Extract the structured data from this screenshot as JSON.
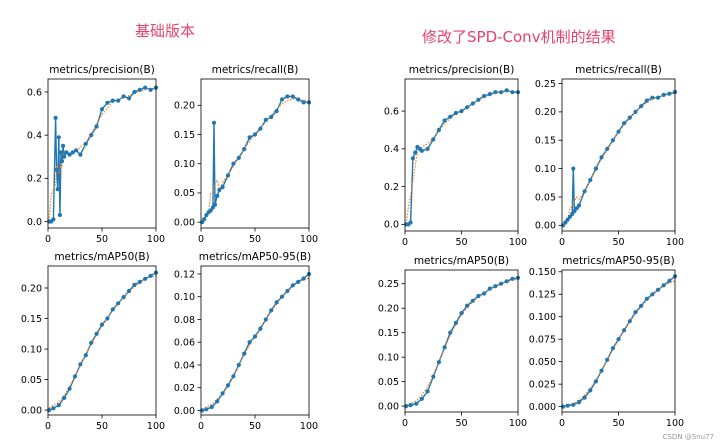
{
  "headings": {
    "left": "基础版本",
    "right": "修改了SPD-Conv机制的结果"
  },
  "watermark": "CSDN @Snu77",
  "series_color": "#1f77b4",
  "smooth_color": "#ff7f0e",
  "chart_data": [
    {
      "type": "line",
      "group": "left",
      "title": "metrics/precision(B)",
      "xlim": [
        0,
        100
      ],
      "ylim": [
        -0.03,
        0.66
      ],
      "xticks": [
        0,
        50,
        100
      ],
      "yticks": [
        0.0,
        0.2,
        0.4,
        0.6
      ],
      "ytick_labels": [
        "0.0",
        "0.2",
        "0.4",
        "0.6"
      ],
      "series": [
        {
          "x": [
            1,
            3,
            5,
            7,
            8,
            9,
            10,
            11,
            12,
            13,
            14,
            15,
            17,
            20,
            23,
            26,
            30,
            35,
            40,
            45,
            50,
            55,
            60,
            65,
            70,
            75,
            80,
            85,
            90,
            95,
            100
          ],
          "y": [
            0.0,
            0.0,
            0.01,
            0.48,
            0.24,
            0.15,
            0.39,
            0.03,
            0.32,
            0.28,
            0.35,
            0.3,
            0.32,
            0.31,
            0.32,
            0.33,
            0.31,
            0.36,
            0.4,
            0.44,
            0.52,
            0.55,
            0.56,
            0.56,
            0.58,
            0.57,
            0.6,
            0.61,
            0.62,
            0.61,
            0.62
          ]
        }
      ]
    },
    {
      "type": "line",
      "group": "left",
      "title": "metrics/recall(B)",
      "xlim": [
        0,
        100
      ],
      "ylim": [
        -0.01,
        0.245
      ],
      "xticks": [
        0,
        50,
        100
      ],
      "yticks": [
        0.0,
        0.05,
        0.1,
        0.15,
        0.2
      ],
      "ytick_labels": [
        "0.00",
        "0.05",
        "0.10",
        "0.15",
        "0.20"
      ],
      "series": [
        {
          "x": [
            1,
            3,
            5,
            7,
            9,
            11,
            12,
            13,
            15,
            17,
            20,
            25,
            30,
            35,
            40,
            45,
            50,
            55,
            60,
            65,
            70,
            75,
            80,
            85,
            90,
            95,
            100
          ],
          "y": [
            0.0,
            0.005,
            0.012,
            0.017,
            0.02,
            0.025,
            0.17,
            0.03,
            0.045,
            0.055,
            0.06,
            0.08,
            0.1,
            0.11,
            0.125,
            0.145,
            0.15,
            0.16,
            0.175,
            0.18,
            0.19,
            0.21,
            0.215,
            0.215,
            0.21,
            0.205,
            0.205
          ]
        }
      ]
    },
    {
      "type": "line",
      "group": "left",
      "title": "metrics/mAP50(B)",
      "xlim": [
        0,
        100
      ],
      "ylim": [
        -0.008,
        0.236
      ],
      "xticks": [
        0,
        50,
        100
      ],
      "yticks": [
        0.0,
        0.05,
        0.1,
        0.15,
        0.2
      ],
      "ytick_labels": [
        "0.00",
        "0.05",
        "0.10",
        "0.15",
        "0.20"
      ],
      "series": [
        {
          "x": [
            1,
            5,
            10,
            15,
            20,
            25,
            30,
            35,
            40,
            45,
            50,
            55,
            60,
            65,
            70,
            75,
            80,
            85,
            90,
            95,
            100
          ],
          "y": [
            0.0,
            0.003,
            0.008,
            0.02,
            0.035,
            0.055,
            0.075,
            0.09,
            0.11,
            0.125,
            0.14,
            0.15,
            0.165,
            0.175,
            0.185,
            0.195,
            0.205,
            0.21,
            0.215,
            0.22,
            0.225
          ]
        }
      ]
    },
    {
      "type": "line",
      "group": "left",
      "title": "metrics/mAP50-95(B)",
      "xlim": [
        0,
        100
      ],
      "ylim": [
        -0.004,
        0.127
      ],
      "xticks": [
        0,
        50,
        100
      ],
      "yticks": [
        0.0,
        0.02,
        0.04,
        0.06,
        0.08,
        0.1,
        0.12
      ],
      "ytick_labels": [
        "0.00",
        "0.02",
        "0.04",
        "0.06",
        "0.08",
        "0.10",
        "0.12"
      ],
      "series": [
        {
          "x": [
            1,
            5,
            10,
            15,
            20,
            25,
            30,
            35,
            40,
            45,
            50,
            55,
            60,
            65,
            70,
            75,
            80,
            85,
            90,
            95,
            100
          ],
          "y": [
            0.0,
            0.001,
            0.003,
            0.008,
            0.015,
            0.022,
            0.03,
            0.04,
            0.05,
            0.06,
            0.065,
            0.072,
            0.08,
            0.088,
            0.095,
            0.1,
            0.105,
            0.11,
            0.113,
            0.116,
            0.12
          ]
        }
      ]
    },
    {
      "type": "line",
      "group": "right",
      "title": "metrics/precision(B)",
      "xlim": [
        0,
        100
      ],
      "ylim": [
        -0.035,
        0.77
      ],
      "xticks": [
        0,
        50,
        100
      ],
      "yticks": [
        0.0,
        0.2,
        0.4,
        0.6
      ],
      "ytick_labels": [
        "0.0",
        "0.2",
        "0.4",
        "0.6"
      ],
      "series": [
        {
          "x": [
            1,
            3,
            5,
            7,
            9,
            11,
            13,
            15,
            20,
            25,
            30,
            35,
            40,
            45,
            50,
            55,
            60,
            65,
            70,
            75,
            80,
            85,
            90,
            95,
            100
          ],
          "y": [
            0.0,
            0.0,
            0.01,
            0.35,
            0.38,
            0.41,
            0.4,
            0.39,
            0.4,
            0.45,
            0.5,
            0.55,
            0.57,
            0.59,
            0.6,
            0.62,
            0.64,
            0.66,
            0.68,
            0.69,
            0.7,
            0.7,
            0.71,
            0.7,
            0.7
          ]
        }
      ]
    },
    {
      "type": "line",
      "group": "right",
      "title": "metrics/recall(B)",
      "xlim": [
        0,
        100
      ],
      "ylim": [
        -0.01,
        0.258
      ],
      "xticks": [
        0,
        50,
        100
      ],
      "yticks": [
        0.0,
        0.05,
        0.1,
        0.15,
        0.2,
        0.25
      ],
      "ytick_labels": [
        "0.00",
        "0.05",
        "0.10",
        "0.15",
        "0.20",
        "0.25"
      ],
      "series": [
        {
          "x": [
            1,
            3,
            5,
            7,
            9,
            10,
            11,
            13,
            15,
            20,
            25,
            30,
            35,
            40,
            45,
            50,
            55,
            60,
            65,
            70,
            75,
            80,
            85,
            90,
            95,
            100
          ],
          "y": [
            0.0,
            0.005,
            0.01,
            0.015,
            0.02,
            0.1,
            0.025,
            0.03,
            0.035,
            0.06,
            0.08,
            0.1,
            0.12,
            0.135,
            0.15,
            0.165,
            0.18,
            0.19,
            0.2,
            0.21,
            0.22,
            0.225,
            0.225,
            0.23,
            0.232,
            0.235
          ]
        }
      ]
    },
    {
      "type": "line",
      "group": "right",
      "title": "metrics/mAP50(B)",
      "xlim": [
        0,
        100
      ],
      "ylim": [
        -0.012,
        0.278
      ],
      "xticks": [
        0,
        50,
        100
      ],
      "yticks": [
        0.0,
        0.05,
        0.1,
        0.15,
        0.2,
        0.25
      ],
      "ytick_labels": [
        "0.00",
        "0.05",
        "0.10",
        "0.15",
        "0.20",
        "0.25"
      ],
      "series": [
        {
          "x": [
            1,
            5,
            10,
            15,
            20,
            25,
            30,
            35,
            40,
            45,
            50,
            55,
            60,
            65,
            70,
            75,
            80,
            85,
            90,
            95,
            100
          ],
          "y": [
            0.0,
            0.002,
            0.005,
            0.015,
            0.03,
            0.06,
            0.09,
            0.12,
            0.15,
            0.17,
            0.19,
            0.205,
            0.215,
            0.225,
            0.23,
            0.24,
            0.245,
            0.25,
            0.255,
            0.26,
            0.262
          ]
        }
      ]
    },
    {
      "type": "line",
      "group": "right",
      "title": "metrics/mAP50-95(B)",
      "xlim": [
        0,
        100
      ],
      "ylim": [
        -0.006,
        0.152
      ],
      "xticks": [
        0,
        50,
        100
      ],
      "yticks": [
        0.0,
        0.025,
        0.05,
        0.075,
        0.1,
        0.125,
        0.15
      ],
      "ytick_labels": [
        "0.000",
        "0.025",
        "0.050",
        "0.075",
        "0.100",
        "0.125",
        "0.150"
      ],
      "series": [
        {
          "x": [
            1,
            5,
            10,
            15,
            20,
            25,
            30,
            35,
            40,
            45,
            50,
            55,
            60,
            65,
            70,
            75,
            80,
            85,
            90,
            95,
            100
          ],
          "y": [
            0.0,
            0.001,
            0.002,
            0.005,
            0.01,
            0.018,
            0.028,
            0.04,
            0.052,
            0.065,
            0.075,
            0.085,
            0.095,
            0.105,
            0.112,
            0.12,
            0.125,
            0.13,
            0.135,
            0.14,
            0.145
          ]
        }
      ]
    }
  ]
}
